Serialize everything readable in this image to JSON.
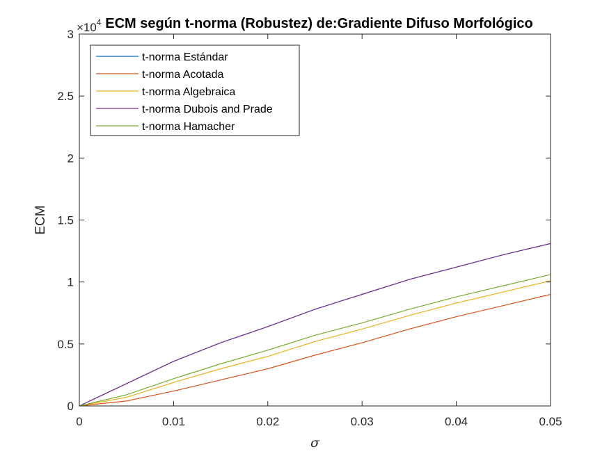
{
  "chart_data": {
    "type": "line",
    "title": "ECM según t-norma (Robustez) de:Gradiente Difuso Morfológico",
    "xlabel": "σ",
    "ylabel": "ECM",
    "y_exponent_label": "×10",
    "y_exponent_power": "4",
    "xlim": [
      0,
      0.05
    ],
    "ylim": [
      0,
      3
    ],
    "x_ticks": [
      0,
      0.01,
      0.02,
      0.03,
      0.04,
      0.05
    ],
    "x_tick_labels": [
      "0",
      "0.01",
      "0.02",
      "0.03",
      "0.04",
      "0.05"
    ],
    "y_ticks": [
      0,
      0.5,
      1,
      1.5,
      2,
      2.5,
      3
    ],
    "y_tick_labels": [
      "0",
      "0.5",
      "1",
      "1.5",
      "2",
      "2.5",
      "3"
    ],
    "grid": false,
    "legend_position": "top-left",
    "x": [
      0,
      0.005,
      0.01,
      0.015,
      0.02,
      0.025,
      0.03,
      0.035,
      0.04,
      0.045,
      0.05
    ],
    "series": [
      {
        "name": "t-norma Estándar",
        "color": "#0072BD",
        "values": [
          0,
          0.18,
          0.36,
          0.51,
          0.64,
          0.78,
          0.9,
          1.02,
          1.12,
          1.22,
          1.31
        ]
      },
      {
        "name": "t-norma Acotada",
        "color": "#D95319",
        "values": [
          0,
          0.04,
          0.12,
          0.21,
          0.3,
          0.41,
          0.51,
          0.62,
          0.72,
          0.81,
          0.9
        ]
      },
      {
        "name": "t-norma Algebraica",
        "color": "#EDB120",
        "values": [
          0,
          0.07,
          0.19,
          0.3,
          0.4,
          0.52,
          0.62,
          0.73,
          0.83,
          0.92,
          1.01
        ]
      },
      {
        "name": "t-norma Dubois and Prade",
        "color": "#7E2F8E",
        "values": [
          0,
          0.18,
          0.36,
          0.51,
          0.64,
          0.78,
          0.9,
          1.02,
          1.12,
          1.22,
          1.31
        ]
      },
      {
        "name": "t-norma Hamacher",
        "color": "#77AC30",
        "values": [
          0,
          0.09,
          0.22,
          0.34,
          0.45,
          0.57,
          0.67,
          0.78,
          0.88,
          0.97,
          1.06
        ]
      }
    ]
  }
}
